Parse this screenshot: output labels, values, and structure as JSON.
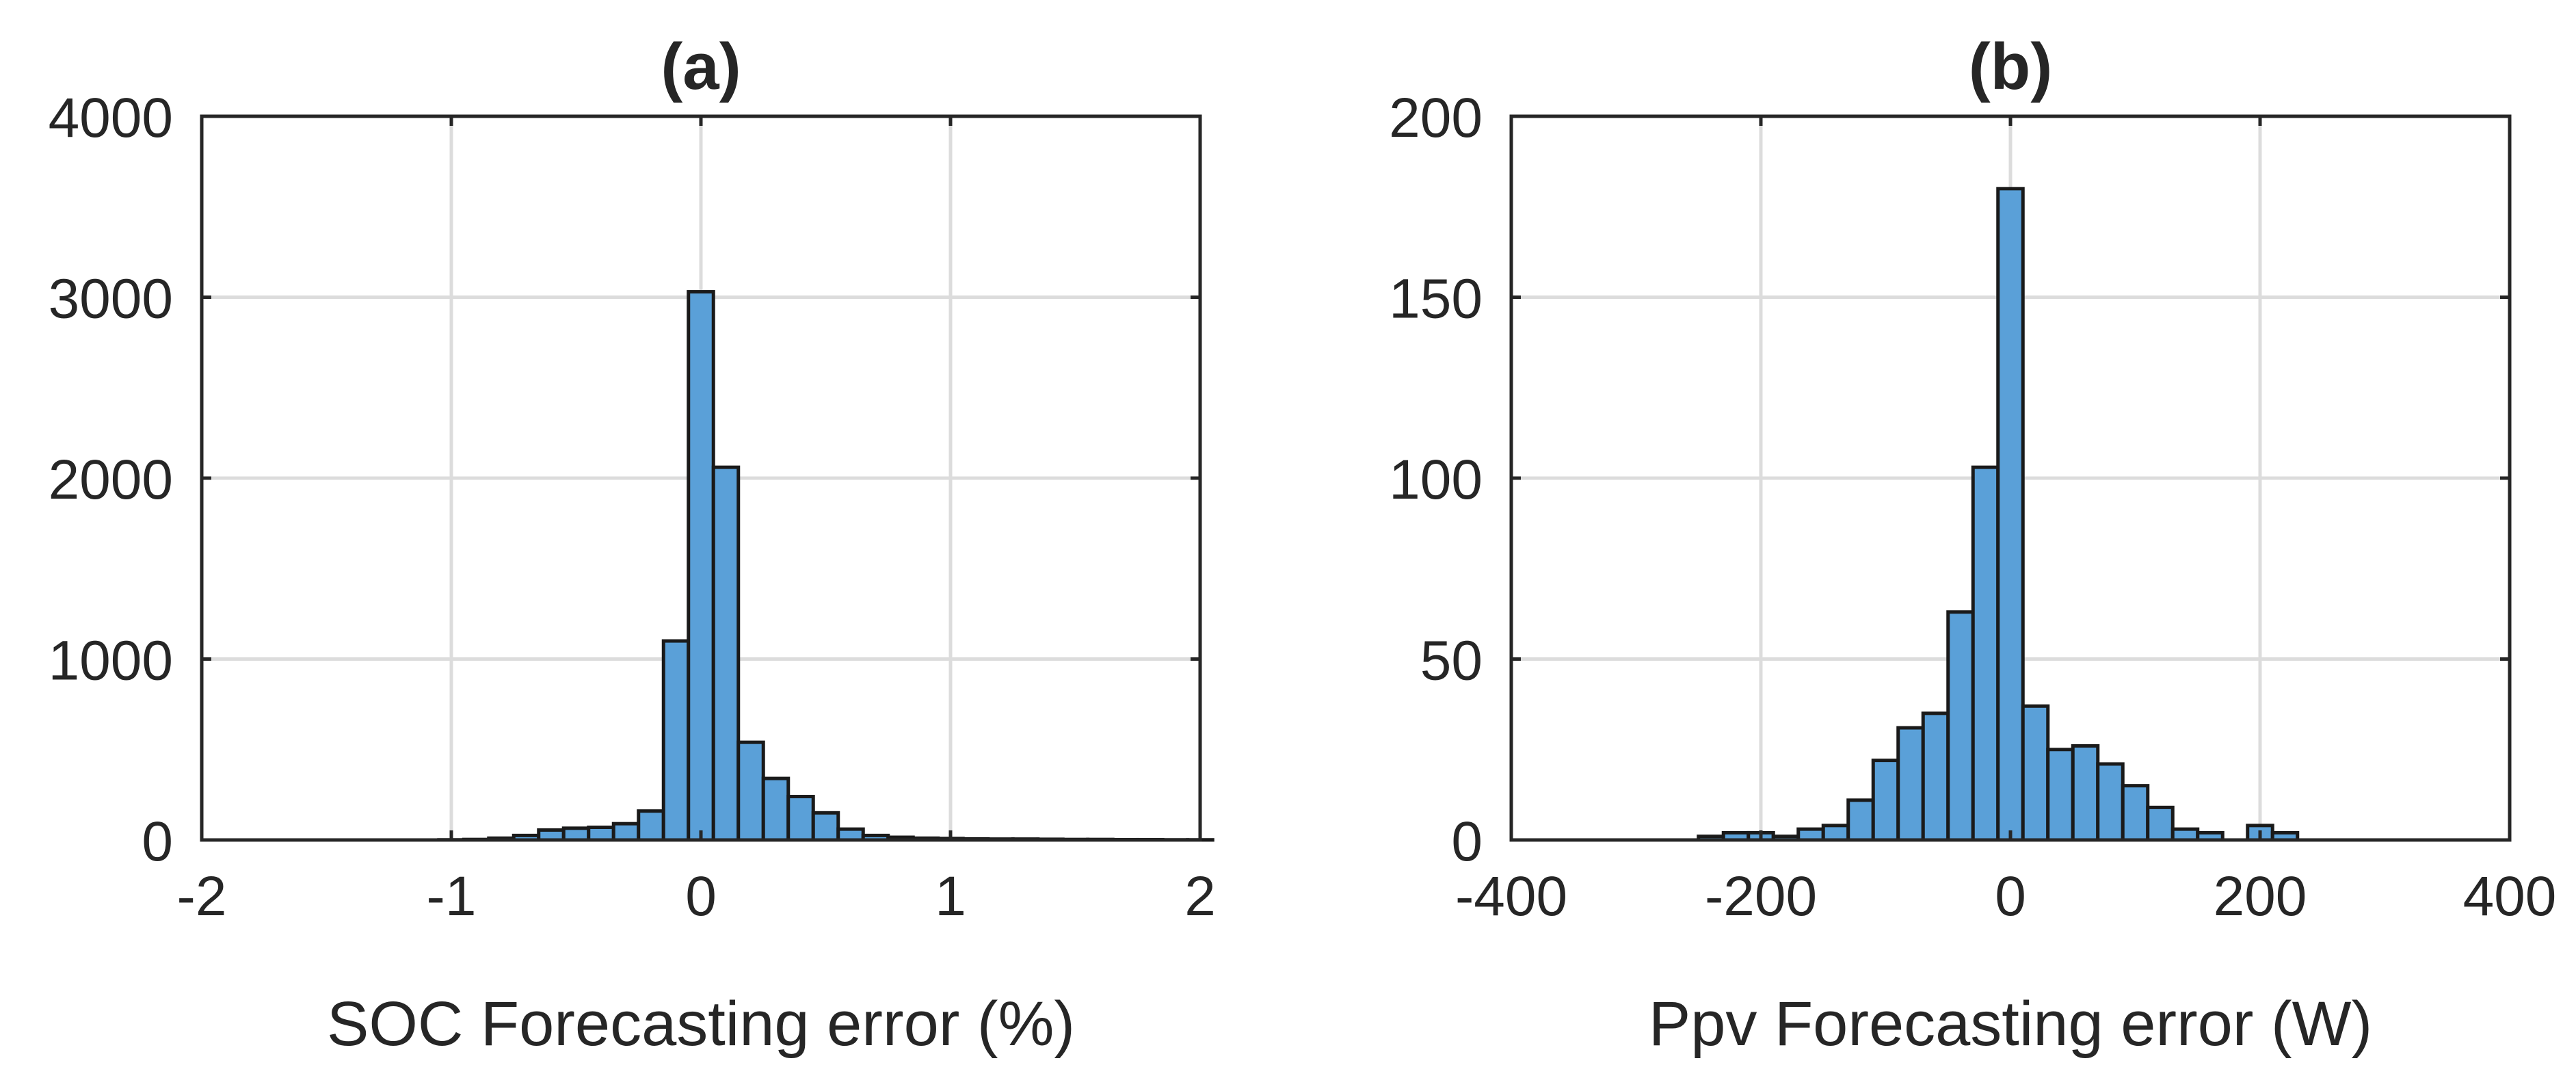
{
  "chart_data": [
    {
      "type": "bar",
      "title": "(a)",
      "xlabel": "SOC Forecasting error (%)",
      "ylabel": "",
      "xlim": [
        -2,
        2
      ],
      "ylim": [
        0,
        4000
      ],
      "xticks": [
        "-2",
        "-1",
        "0",
        "1",
        "2"
      ],
      "yticks": [
        "0",
        "1000",
        "2000",
        "3000",
        "4000"
      ],
      "grid": true,
      "bar_color": "#5aa0d8",
      "bin_width": 0.1,
      "bin_edges_start": -1.05,
      "values": [
        1,
        3,
        10,
        25,
        55,
        65,
        70,
        90,
        160,
        1100,
        3030,
        2060,
        540,
        340,
        240,
        150,
        60,
        25,
        15,
        10,
        8,
        6,
        5,
        5,
        4,
        3,
        3,
        2,
        2,
        1,
        1
      ]
    },
    {
      "type": "bar",
      "title": "(b)",
      "xlabel": "Ppv Forecasting error (W)",
      "ylabel": "",
      "xlim": [
        -400,
        400
      ],
      "ylim": [
        0,
        200
      ],
      "xticks": [
        "-400",
        "-200",
        "0",
        "200",
        "400"
      ],
      "yticks": [
        "0",
        "50",
        "100",
        "150",
        "200"
      ],
      "grid": true,
      "bar_color": "#5aa0d8",
      "bin_width": 20,
      "bin_edges_start": -250,
      "values": [
        1,
        2,
        2,
        1,
        3,
        4,
        11,
        22,
        31,
        35,
        63,
        103,
        180,
        37,
        25,
        26,
        21,
        15,
        9,
        3,
        2,
        0,
        4,
        2
      ]
    }
  ]
}
